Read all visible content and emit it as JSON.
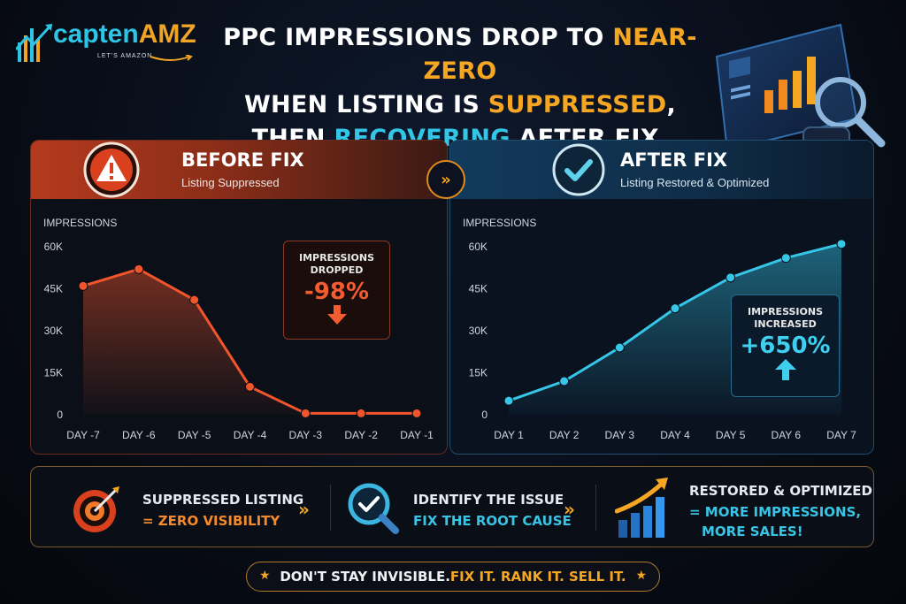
{
  "logo": {
    "name_part1": "capten",
    "name_part2": "AMZ",
    "tagline": "LET'S AMAZON"
  },
  "headline": {
    "line1_prefix": "PPC IMPRESSIONS DROP TO ",
    "line1_highlight": "NEAR-ZERO",
    "line2_prefix": "WHEN LISTING IS ",
    "line2_highlight": "SUPPRESSED",
    "line2_suffix": ",",
    "line3_prefix": "THEN ",
    "line3_highlight": "RECOVERING",
    "line3_suffix": " AFTER FIX."
  },
  "colors": {
    "before": "#f0552b",
    "after": "#36c6e8",
    "accent": "#f5a623"
  },
  "before": {
    "title": "BEFORE FIX",
    "subtitle": "Listing Suppressed",
    "callout_label_1": "IMPRESSIONS",
    "callout_label_2": "DROPPED",
    "callout_value": "-98%"
  },
  "after": {
    "title": "AFTER FIX",
    "subtitle": "Listing Restored & Optimized",
    "callout_label_1": "IMPRESSIONS",
    "callout_label_2": "INCREASED",
    "callout_value": "+650%"
  },
  "chart_data": [
    {
      "type": "area",
      "ylabel": "IMPRESSIONS",
      "categories": [
        "DAY -7",
        "DAY -6",
        "DAY -5",
        "DAY -4",
        "DAY -3",
        "DAY -2",
        "DAY -1"
      ],
      "values": [
        46000,
        52000,
        41000,
        10000,
        500,
        500,
        500
      ],
      "y_ticks": [
        "0",
        "15K",
        "30K",
        "45K",
        "60K"
      ],
      "ylim": [
        0,
        60000
      ],
      "grid": false
    },
    {
      "type": "area",
      "ylabel": "IMPRESSIONS",
      "categories": [
        "DAY 1",
        "DAY 2",
        "DAY 3",
        "DAY 4",
        "DAY 5",
        "DAY 6",
        "DAY 7"
      ],
      "values": [
        5000,
        12000,
        24000,
        38000,
        49000,
        56000,
        61000
      ],
      "y_ticks": [
        "0",
        "15K",
        "30K",
        "45K",
        "60K"
      ],
      "ylim": [
        0,
        60000
      ],
      "grid": false
    }
  ],
  "steps": [
    {
      "title": "SUPPRESSED LISTING",
      "subtitle": "= ZERO VISIBILITY",
      "icon": "target-icon"
    },
    {
      "title": "IDENTIFY THE ISSUE",
      "subtitle": "FIX THE ROOT CAUSE",
      "icon": "magnifier-check-icon"
    },
    {
      "title": "RESTORED & OPTIMIZED",
      "subtitle": "= MORE IMPRESSIONS,",
      "subtitle2": "MORE SALES!",
      "icon": "growth-chart-icon"
    }
  ],
  "tagline": {
    "part1": "DON'T STAY INVISIBLE. ",
    "part2": "FIX IT. RANK IT. SELL IT."
  }
}
